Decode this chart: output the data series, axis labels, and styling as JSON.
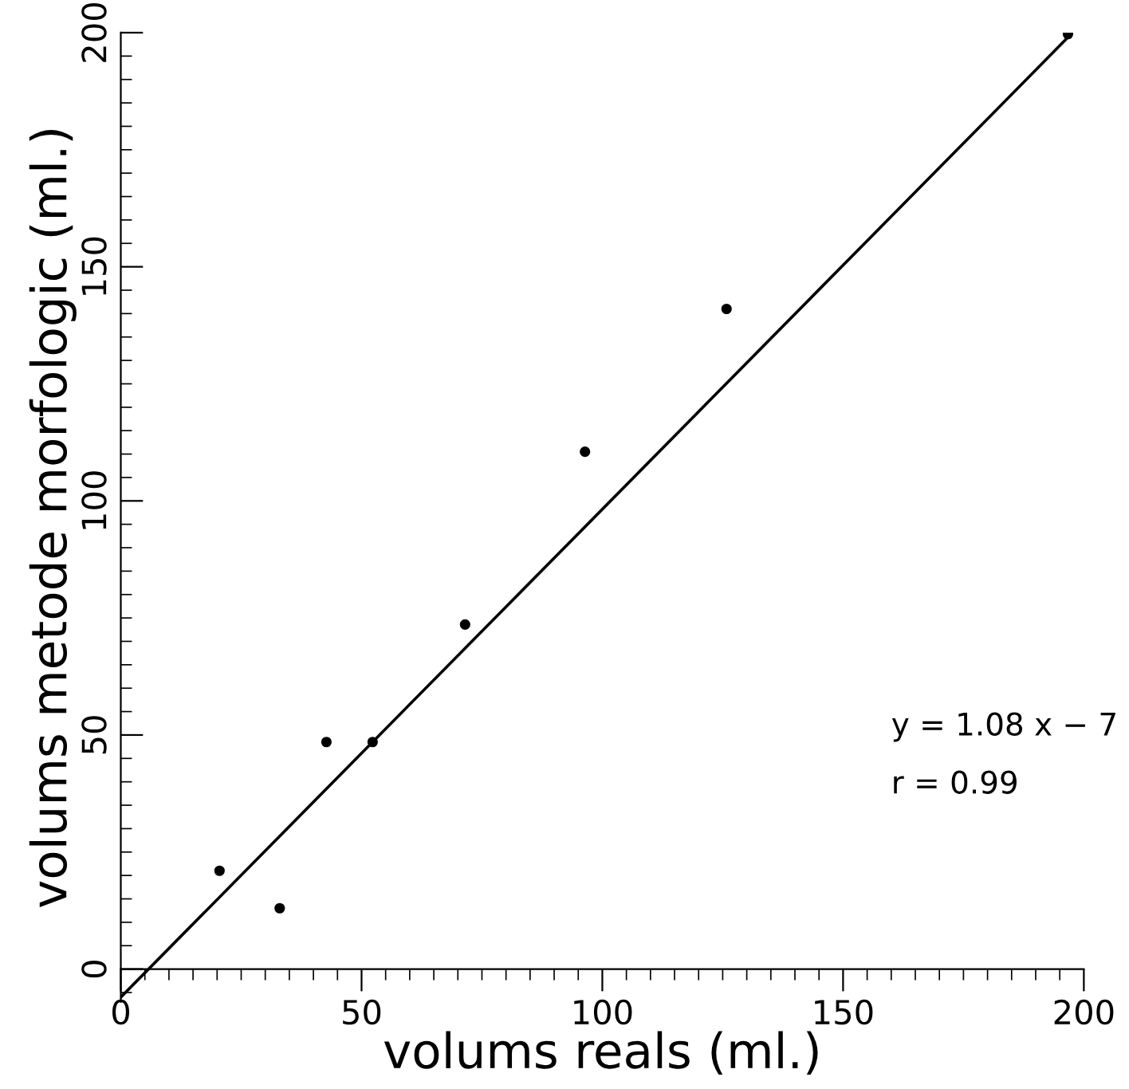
{
  "chart_data": {
    "type": "scatter",
    "xlabel": "volums reals (ml.)",
    "ylabel": "volums metode morfologic (ml.)",
    "xlim": [
      0,
      200
    ],
    "ylim": [
      -7,
      200
    ],
    "xticks": [
      0,
      50,
      100,
      150,
      200
    ],
    "yticks": [
      0,
      50,
      100,
      150,
      200
    ],
    "grid": false,
    "series": [
      {
        "color": "#000000",
        "marker": "circle",
        "x": [
          20.5,
          33,
          42.7,
          52.3,
          71.5,
          96.4,
          125.8,
          196.7
        ],
        "values": [
          21,
          13,
          48.5,
          48.5,
          73.6,
          110.5,
          141,
          199.7
        ]
      },
      {
        "type": "line",
        "color": "#000000",
        "marker": "none",
        "line_style": "solid",
        "x": [
          0,
          196.7
        ],
        "values": [
          -6,
          199
        ]
      }
    ],
    "annotations": [
      "y = 1.08 x − 7",
      "r = 0.99"
    ]
  }
}
